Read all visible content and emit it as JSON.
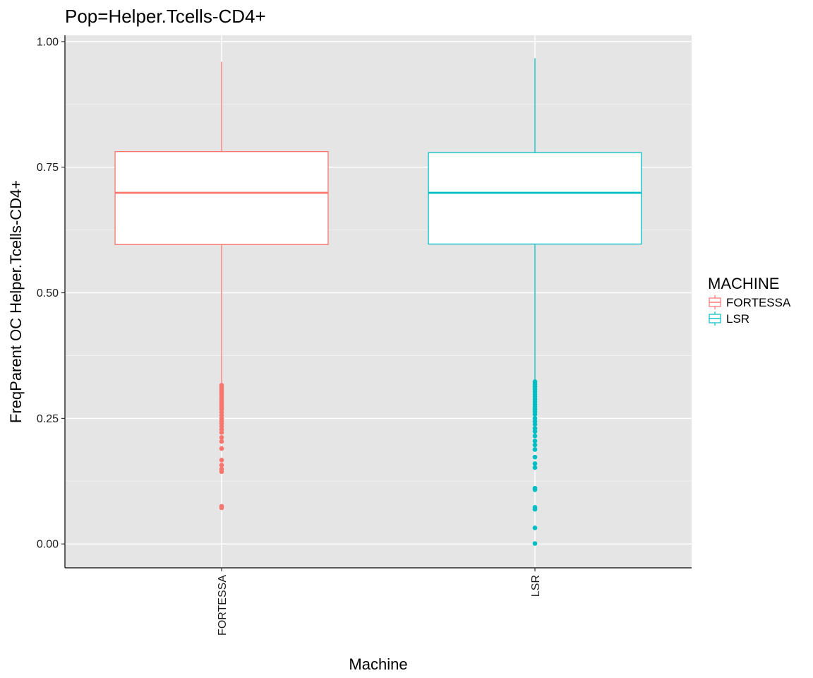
{
  "chart_data": {
    "type": "box",
    "title": "Pop=Helper.Tcells-CD4+",
    "xlabel": "Machine",
    "ylabel": "FreqParent OC  Helper.Tcells-CD4+",
    "ylim": [
      -0.0475,
      1.0125
    ],
    "yticks": [
      "0.00",
      "0.25",
      "0.50",
      "0.75",
      "1.00"
    ],
    "ytick_values": [
      0,
      0.25,
      0.5,
      0.75,
      1.0
    ],
    "categories": [
      "FORTESSA",
      "LSR"
    ],
    "background": "#e5e5e5",
    "grid": true,
    "legend": {
      "title": "MACHINE",
      "position": "right",
      "entries": [
        "FORTESSA",
        "LSR"
      ]
    },
    "series": [
      {
        "name": "FORTESSA",
        "color": "#f8766d",
        "whisker_low": 0.318,
        "q1": 0.596,
        "median": 0.699,
        "q3": 0.781,
        "whisker_high": 0.96,
        "outliers": [
          0.316,
          0.312,
          0.309,
          0.305,
          0.301,
          0.297,
          0.292,
          0.288,
          0.284,
          0.28,
          0.276,
          0.272,
          0.268,
          0.262,
          0.256,
          0.25,
          0.245,
          0.24,
          0.234,
          0.228,
          0.222,
          0.212,
          0.204,
          0.19,
          0.167,
          0.157,
          0.149,
          0.144,
          0.075,
          0.072
        ]
      },
      {
        "name": "LSR",
        "color": "#00bfc4",
        "whisker_low": 0.325,
        "q1": 0.597,
        "median": 0.699,
        "q3": 0.779,
        "whisker_high": 0.967,
        "outliers": [
          0.323,
          0.318,
          0.313,
          0.308,
          0.303,
          0.298,
          0.293,
          0.288,
          0.283,
          0.278,
          0.273,
          0.268,
          0.263,
          0.258,
          0.25,
          0.244,
          0.238,
          0.23,
          0.224,
          0.215,
          0.205,
          0.197,
          0.188,
          0.173,
          0.16,
          0.152,
          0.111,
          0.108,
          0.073,
          0.069,
          0.032,
          0.001
        ]
      }
    ]
  }
}
